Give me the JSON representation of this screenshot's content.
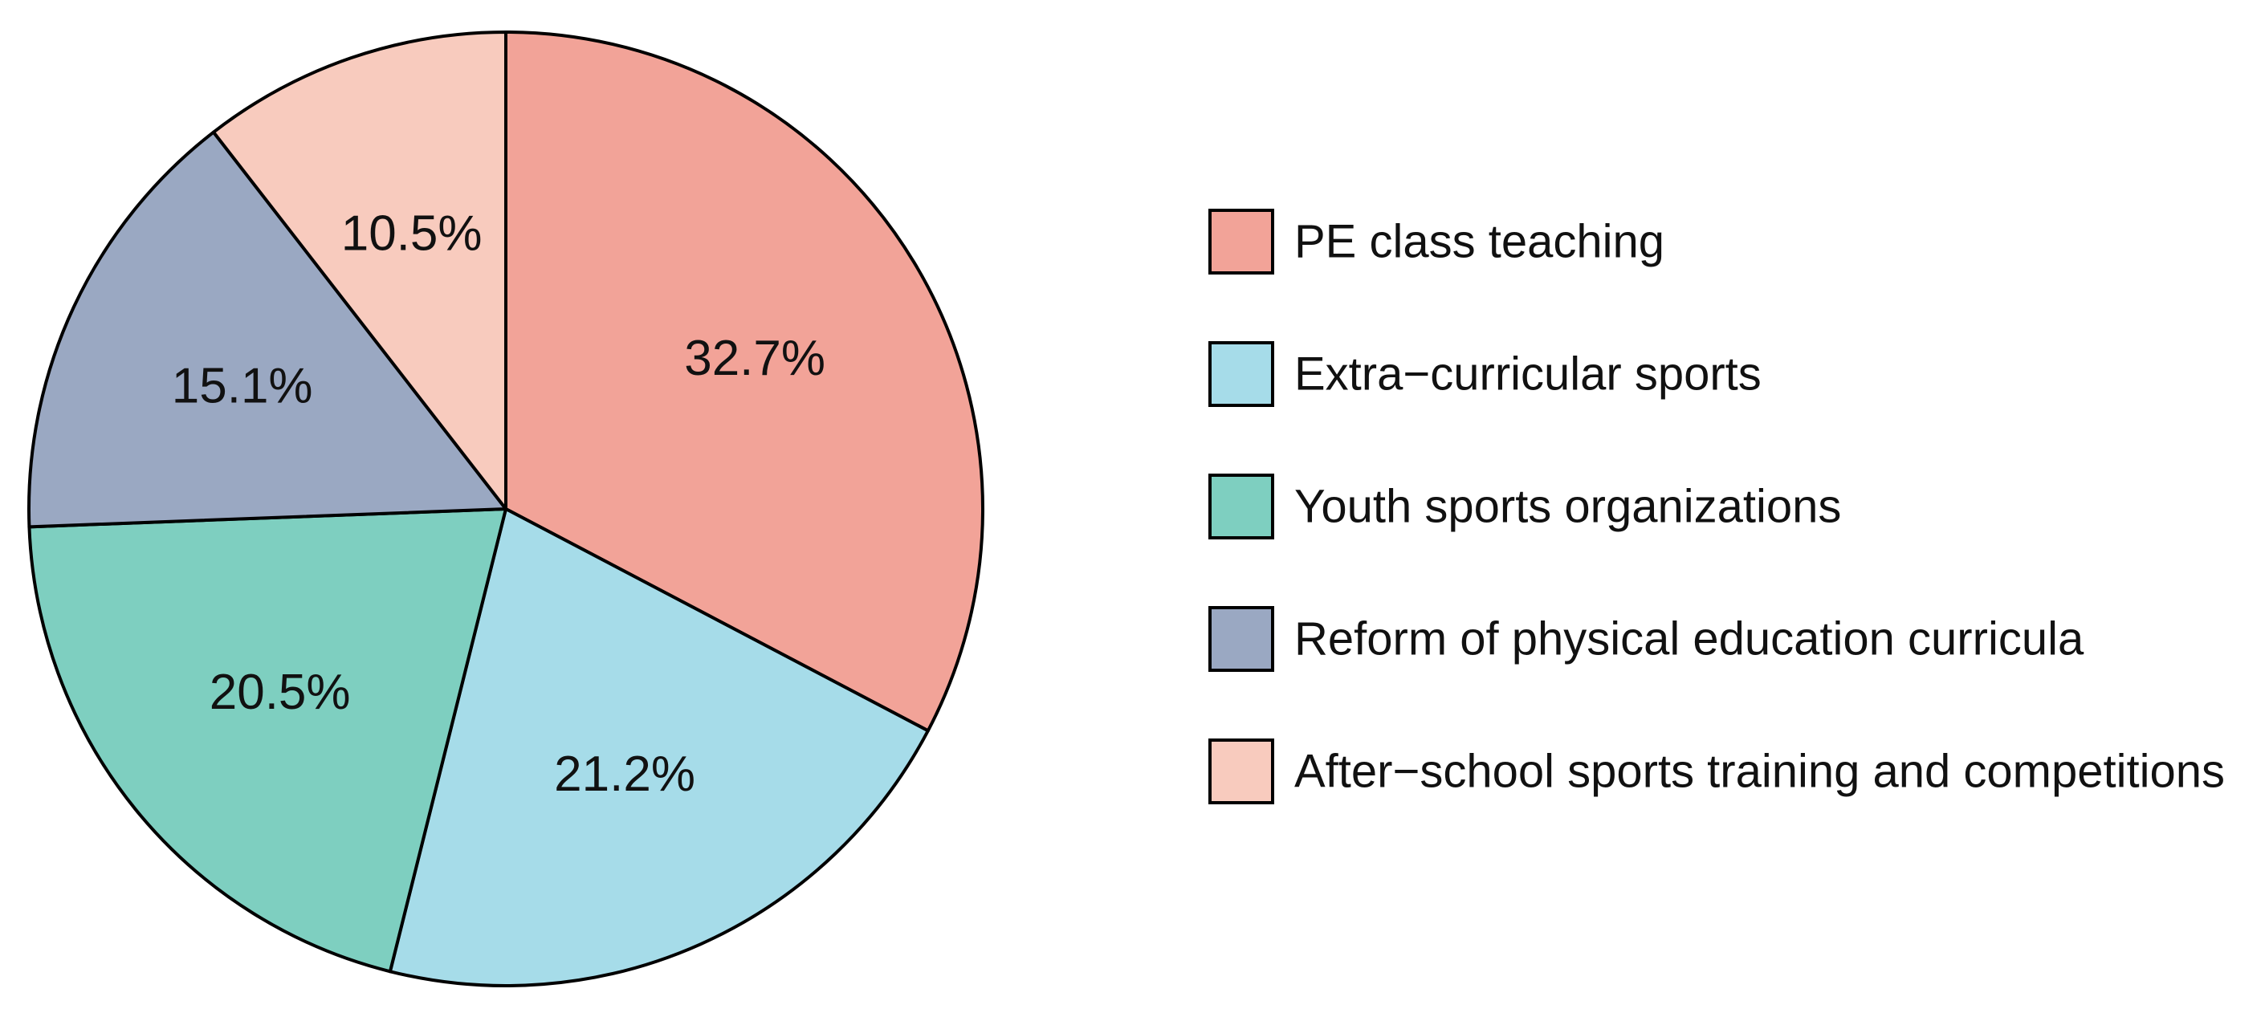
{
  "chart_data": {
    "type": "pie",
    "title": "",
    "start_angle": "12 o'clock",
    "direction": "clockwise",
    "slices": [
      {
        "label": "PE class teaching",
        "value": 32.7,
        "value_label": "32.7%",
        "color": "#F2A398"
      },
      {
        "label": "Extra−curricular sports",
        "value": 21.2,
        "value_label": "21.2%",
        "color": "#A6DCE9"
      },
      {
        "label": "Youth sports organizations",
        "value": 20.5,
        "value_label": "20.5%",
        "color": "#7ECFC0"
      },
      {
        "label": "Reform of physical education curricula",
        "value": 15.1,
        "value_label": "15.1%",
        "color": "#9AA8C2"
      },
      {
        "label": "After−school sports training and competitions",
        "value": 10.5,
        "value_label": "10.5%",
        "color": "#F8CBBE"
      }
    ],
    "legend_position": "right",
    "edge_color": "#000000"
  }
}
